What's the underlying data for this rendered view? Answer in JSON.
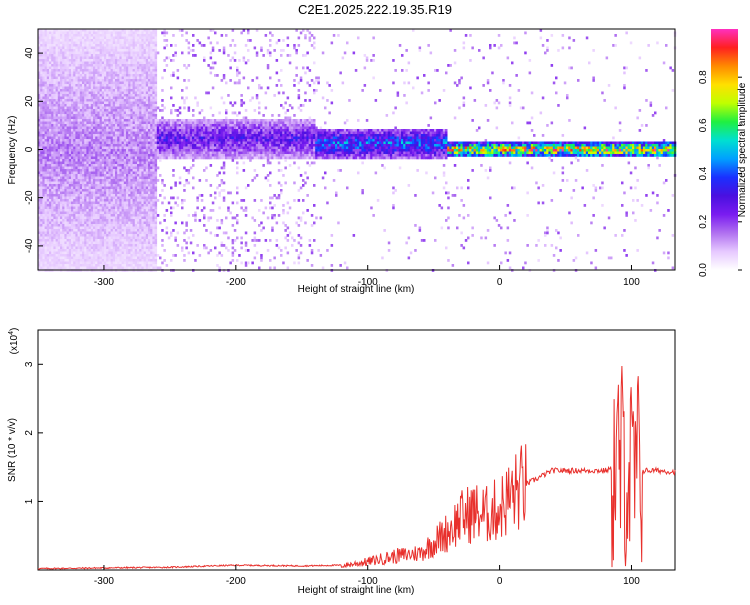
{
  "title": "C2E1.2025.222.19.35.R19",
  "colors": {
    "snr_line": "#e8302c",
    "colormap": [
      "#ffffff",
      "#e6c8ff",
      "#b070f0",
      "#7a1cf0",
      "#4a10e0",
      "#1a30ff",
      "#00a0ff",
      "#00e0d0",
      "#20f040",
      "#c0ff00",
      "#ffe000",
      "#ff8a00",
      "#ff2020",
      "#ff30c0"
    ]
  },
  "chart_data": [
    {
      "type": "heatmap",
      "xlabel": "Height of straight line (km)",
      "ylabel": "Frequency (Hz)",
      "xlim": [
        -350,
        133
      ],
      "ylim": [
        -50,
        50
      ],
      "xticks": [
        -300,
        -200,
        -100,
        0,
        100
      ],
      "yticks": [
        -40,
        -20,
        0,
        20,
        40
      ],
      "grid": false,
      "description_series": [
        {
          "x": [
            -350,
            -260
          ],
          "band_center_hz": 0,
          "band_halfwidth_hz": 50,
          "amplitude": 0.15
        },
        {
          "x": [
            -260,
            -140
          ],
          "band_center_hz": 5,
          "band_halfwidth_hz": 8,
          "amplitude": 0.3
        },
        {
          "x": [
            -140,
            -40
          ],
          "band_center_hz": 3,
          "band_halfwidth_hz": 6,
          "amplitude": 0.45
        },
        {
          "x": [
            -40,
            133
          ],
          "band_center_hz": 0.5,
          "band_halfwidth_hz": 3,
          "amplitude": 0.85
        }
      ],
      "colorbar": {
        "label": "Normalized spectral amplitude",
        "range": [
          0,
          1
        ],
        "ticks": [
          0.0,
          0.2,
          0.4,
          0.6,
          0.8
        ]
      }
    },
    {
      "type": "line",
      "xlabel": "Height of straight line (km)",
      "ylabel": "SNR (10 * v/v)",
      "yscale_label": "(x10^4)",
      "xlim": [
        -350,
        133
      ],
      "ylim": [
        0,
        3.5
      ],
      "xticks": [
        -300,
        -200,
        -100,
        0,
        100
      ],
      "yticks": [
        1,
        2,
        3
      ],
      "grid": false,
      "series": [
        {
          "x": [
            -350,
            -300,
            -250,
            -200,
            -150,
            -120,
            -100,
            -80,
            -60,
            -50,
            -40,
            -30,
            -20,
            -10,
            0,
            10,
            20,
            30,
            40,
            50,
            60,
            70,
            80,
            90,
            95,
            100,
            105,
            110,
            120,
            133
          ],
          "y": [
            0.01,
            0.02,
            0.03,
            0.06,
            0.05,
            0.06,
            0.12,
            0.2,
            0.25,
            0.4,
            0.55,
            0.75,
            0.85,
            0.8,
            0.9,
            1.1,
            1.25,
            1.35,
            1.45,
            1.45,
            1.45,
            1.45,
            1.45,
            1.5,
            1.6,
            1.3,
            1.4,
            1.45,
            1.45,
            1.43
          ]
        }
      ]
    }
  ]
}
